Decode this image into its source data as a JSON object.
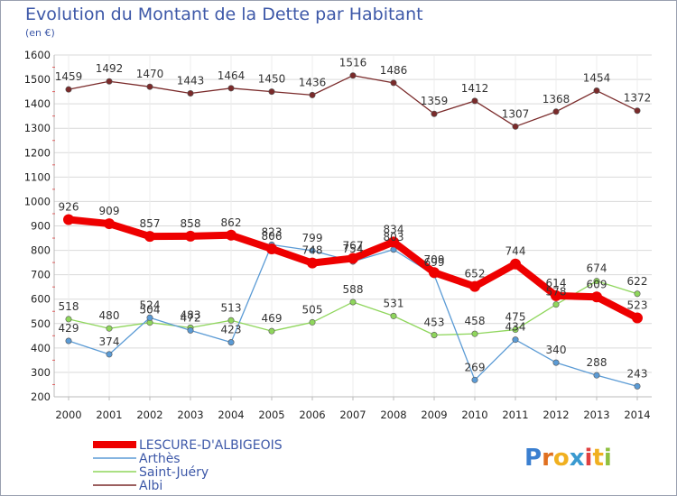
{
  "title": "Evolution du Montant de la Dette par Habitant",
  "subtitle": "(en €)",
  "logo": "Proxiti",
  "colors": {
    "title": "#3d58a8",
    "frame": "#9aa0b0",
    "grid": "#d9d9d9",
    "axis_marks": "#e06060"
  },
  "chart_data": {
    "type": "line",
    "title": "Evolution du Montant de la Dette par Habitant",
    "subtitle": "(en €)",
    "xlabel": "",
    "ylabel": "",
    "x": [
      "2000",
      "2001",
      "2002",
      "2003",
      "2004",
      "2005",
      "2006",
      "2007",
      "2008",
      "2009",
      "2010",
      "2011",
      "2012",
      "2013",
      "2014"
    ],
    "ylim": [
      200,
      1600
    ],
    "yticks": [
      200,
      300,
      400,
      500,
      600,
      700,
      800,
      900,
      1000,
      1100,
      1200,
      1300,
      1400,
      1500,
      1600
    ],
    "grid": true,
    "legend_position": "bottom-left",
    "series": [
      {
        "name": "LESCURE-D'ALBIGEOIS",
        "color": "#ee0000",
        "values": [
          926,
          909,
          857,
          858,
          862,
          806,
          748,
          767,
          834,
          709,
          652,
          744,
          614,
          609,
          523
        ]
      },
      {
        "name": "Arthès",
        "color": "#5b9bd5",
        "values": [
          429,
          374,
          524,
          472,
          423,
          823,
          799,
          754,
          803,
          699,
          269,
          434,
          340,
          288,
          243
        ]
      },
      {
        "name": "Saint-Juéry",
        "color": "#8fd65c",
        "values": [
          518,
          480,
          504,
          483,
          513,
          469,
          505,
          588,
          531,
          453,
          458,
          475,
          578,
          674,
          622
        ]
      },
      {
        "name": "Albi",
        "color": "#7a2a2a",
        "values": [
          1459,
          1492,
          1470,
          1443,
          1464,
          1450,
          1436,
          1516,
          1486,
          1359,
          1412,
          1307,
          1368,
          1454,
          1372
        ]
      }
    ]
  }
}
